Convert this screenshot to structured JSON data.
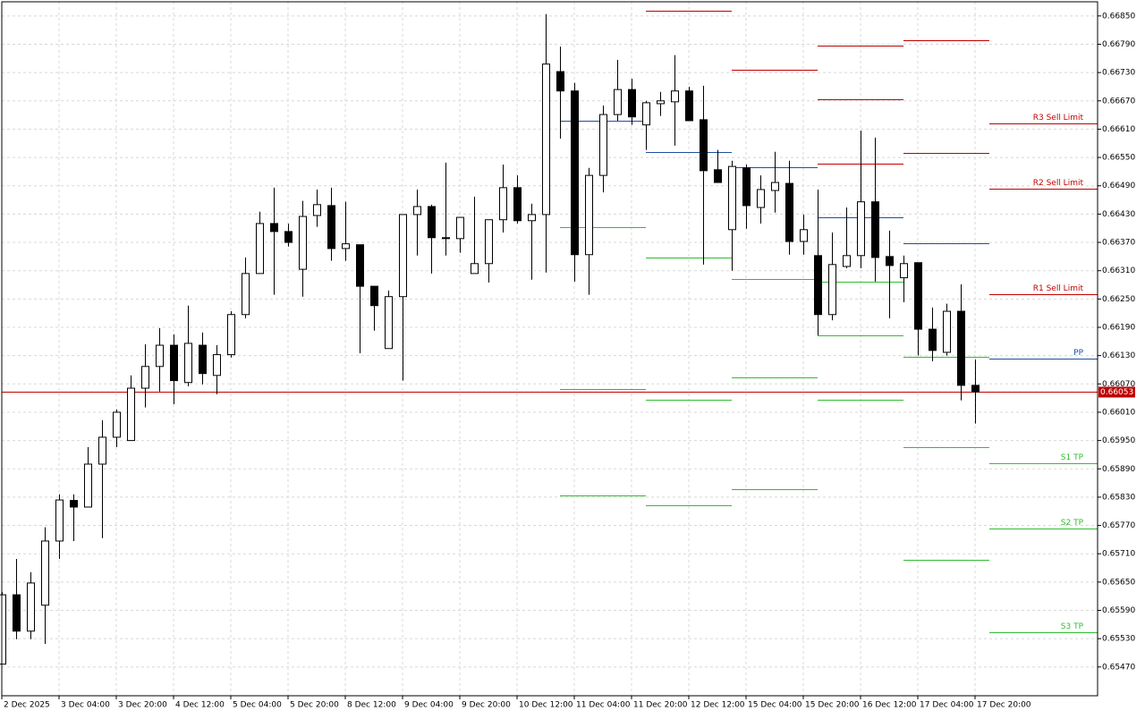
{
  "chart_data": {
    "type": "candlestick",
    "categories": [
      "2 Dec 2025",
      null,
      null,
      null,
      "3 Dec 04:00",
      null,
      null,
      null,
      "3 Dec 20:00",
      null,
      null,
      null,
      "4 Dec 12:00",
      null,
      null,
      null,
      "5 Dec 04:00",
      null,
      null,
      null,
      "5 Dec 20:00",
      null,
      null,
      null,
      "8 Dec 12:00",
      null,
      null,
      null,
      "9 Dec 04:00",
      null,
      null,
      null,
      "9 Dec 20:00",
      null,
      null,
      null,
      "10 Dec 12:00",
      null,
      null,
      null,
      "11 Dec 04:00",
      null,
      null,
      null,
      "11 Dec 20:00",
      null,
      null,
      null,
      "12 Dec 12:00",
      null,
      null,
      null,
      "15 Dec 04:00",
      null,
      null,
      null,
      "15 Dec 20:00",
      null,
      null,
      null,
      "16 Dec 12:00",
      null,
      null,
      null,
      "17 Dec 04:00",
      null,
      null,
      null,
      "17 Dec 20:00"
    ],
    "open": [
      0.65476,
      0.65623,
      0.65546,
      0.65601,
      0.65737,
      0.65823,
      0.65809,
      0.659,
      0.65957,
      0.6595,
      0.66061,
      0.66107,
      0.66152,
      0.66073,
      0.66152,
      0.66088,
      0.66132,
      0.66217,
      0.66304,
      0.6641,
      0.66393,
      0.66313,
      0.66427,
      0.66448,
      0.66357,
      0.66365,
      0.66277,
      0.66145,
      0.66255,
      0.66429,
      0.66446,
      0.6638,
      0.66378,
      0.66304,
      0.66325,
      0.66418,
      0.66486,
      0.66416,
      0.66429,
      0.66732,
      0.66691,
      0.66344,
      0.66512,
      0.66641,
      0.66694,
      0.66619,
      0.66664,
      0.66668,
      0.66691,
      0.6663,
      0.66524,
      0.66397,
      0.66528,
      0.66444,
      0.6648,
      0.66495,
      0.66372,
      0.66342,
      0.66217,
      0.66319,
      0.66342,
      0.66456,
      0.6634,
      0.66295,
      0.66327,
      0.66186,
      0.66137,
      0.66224,
      0.66067
    ],
    "high": [
      0.65629,
      0.65699,
      0.65671,
      0.65766,
      0.65836,
      0.65836,
      0.65936,
      0.65993,
      0.66016,
      0.66088,
      0.66154,
      0.66188,
      0.66175,
      0.66236,
      0.66179,
      0.66152,
      0.66224,
      0.66338,
      0.66435,
      0.66486,
      0.6641,
      0.66458,
      0.66482,
      0.66486,
      0.66456,
      0.66365,
      0.66277,
      0.66268,
      0.66429,
      0.66482,
      0.6645,
      0.66539,
      0.66423,
      0.66467,
      0.66418,
      0.66535,
      0.66512,
      0.66452,
      0.66854,
      0.66785,
      0.66708,
      0.66528,
      0.6666,
      0.66757,
      0.66717,
      0.6667,
      0.66689,
      0.66767,
      0.667,
      0.66702,
      0.66566,
      0.66543,
      0.66535,
      0.66512,
      0.66562,
      0.66543,
      0.66429,
      0.66482,
      0.66391,
      0.66444,
      0.66607,
      0.66592,
      0.66395,
      0.66342,
      0.66327,
      0.66232,
      0.6624,
      0.66281,
      0.66122
    ],
    "low": [
      0.65476,
      0.65529,
      0.65529,
      0.65519,
      0.65699,
      0.65737,
      0.65809,
      0.65743,
      0.65936,
      0.6595,
      0.6602,
      0.66054,
      0.66027,
      0.66065,
      0.66069,
      0.66048,
      0.66126,
      0.66209,
      0.66304,
      0.66259,
      0.66361,
      0.66255,
      0.66403,
      0.66331,
      0.66331,
      0.66135,
      0.66183,
      0.66145,
      0.66077,
      0.66342,
      0.66304,
      0.66342,
      0.66348,
      0.66304,
      0.66285,
      0.66391,
      0.6641,
      0.66291,
      0.66306,
      0.6659,
      0.66287,
      0.66259,
      0.66476,
      0.66628,
      0.66619,
      0.66566,
      0.66638,
      0.66575,
      0.66628,
      0.66323,
      0.66497,
      0.6631,
      0.66399,
      0.6641,
      0.66433,
      0.66344,
      0.66344,
      0.66173,
      0.66205,
      0.66315,
      0.66315,
      0.66287,
      0.66209,
      0.66243,
      0.6613,
      0.66118,
      0.6613,
      0.66035,
      0.65986
    ],
    "close": [
      0.65623,
      0.65546,
      0.65648,
      0.65737,
      0.65824,
      0.65809,
      0.659,
      0.65957,
      0.6601,
      0.66061,
      0.66107,
      0.66152,
      0.66077,
      0.66156,
      0.66092,
      0.66132,
      0.66217,
      0.66304,
      0.6641,
      0.66393,
      0.6637,
      0.66425,
      0.6645,
      0.66357,
      0.66367,
      0.66277,
      0.66236,
      0.66255,
      0.66429,
      0.66446,
      0.6638,
      0.66378,
      0.66423,
      0.66325,
      0.66418,
      0.66486,
      0.66416,
      0.66429,
      0.66748,
      0.66691,
      0.66344,
      0.66512,
      0.66641,
      0.66694,
      0.66636,
      0.66666,
      0.6667,
      0.66691,
      0.66628,
      0.66522,
      0.66497,
      0.66531,
      0.66448,
      0.66482,
      0.66497,
      0.66372,
      0.66397,
      0.66217,
      0.66323,
      0.66342,
      0.66456,
      0.66338,
      0.66321,
      0.66325,
      0.66186,
      0.66141,
      0.66224,
      0.66067,
      0.66053
    ],
    "up_color": "#ffffff",
    "down_color": "#000000",
    "ylim": [
      0.65409,
      0.6688
    ],
    "yticks": [
      {
        "value": 0.6685,
        "label": "0.66850"
      },
      {
        "value": 0.6679,
        "label": "0.66790"
      },
      {
        "value": 0.6673,
        "label": "0.66730"
      },
      {
        "value": 0.6667,
        "label": "0.66670"
      },
      {
        "value": 0.6661,
        "label": "0.66610"
      },
      {
        "value": 0.6655,
        "label": "0.66550"
      },
      {
        "value": 0.6649,
        "label": "0.66490"
      },
      {
        "value": 0.6643,
        "label": "0.66430"
      },
      {
        "value": 0.6637,
        "label": "0.66370"
      },
      {
        "value": 0.6631,
        "label": "0.66310"
      },
      {
        "value": 0.6625,
        "label": "0.66250"
      },
      {
        "value": 0.6619,
        "label": "0.66190"
      },
      {
        "value": 0.6613,
        "label": "0.66130"
      },
      {
        "value": 0.6607,
        "label": "0.66070"
      },
      {
        "value": 0.6601,
        "label": "0.66010"
      },
      {
        "value": 0.6595,
        "label": "0.65950"
      },
      {
        "value": 0.6589,
        "label": "0.65890"
      },
      {
        "value": 0.6583,
        "label": "0.65830"
      },
      {
        "value": 0.6577,
        "label": "0.65770"
      },
      {
        "value": 0.6571,
        "label": "0.65710"
      },
      {
        "value": 0.6565,
        "label": "0.65650"
      },
      {
        "value": 0.6559,
        "label": "0.65590"
      },
      {
        "value": 0.6553,
        "label": "0.65530"
      },
      {
        "value": 0.6547,
        "label": "0.65470"
      }
    ],
    "grid": true,
    "current_price": 0.66053,
    "current_price_color": "#c00000",
    "pivots": [
      {
        "start": 39,
        "end": 45,
        "lines": [
          {
            "value": 0.66628,
            "color": "#1f4ea0"
          },
          {
            "value": 0.66403,
            "color": "#33bb33"
          },
          {
            "value": 0.66059,
            "color": "#33bb33"
          },
          {
            "value": 0.65834,
            "color": "#33bb33"
          }
        ]
      },
      {
        "start": 45,
        "end": 51,
        "lines": [
          {
            "value": 0.66861,
            "color": "#c00000"
          },
          {
            "value": 0.66562,
            "color": "#1f4ea0"
          },
          {
            "value": 0.66338,
            "color": "#33bb33"
          },
          {
            "value": 0.66037,
            "color": "#33bb33"
          },
          {
            "value": 0.65813,
            "color": "#33bb33"
          }
        ]
      },
      {
        "start": 51,
        "end": 57,
        "lines": [
          {
            "value": 0.66736,
            "color": "#c00000"
          },
          {
            "value": 0.6653,
            "color": "#1f4ea0"
          },
          {
            "value": 0.66293,
            "color": "#33bb33"
          },
          {
            "value": 0.66084,
            "color": "#33bb33"
          },
          {
            "value": 0.65847,
            "color": "#33bb33"
          }
        ]
      },
      {
        "start": 57,
        "end": 63,
        "lines": [
          {
            "value": 0.66787,
            "color": "#c00000"
          },
          {
            "value": 0.66674,
            "color": "#c00000"
          },
          {
            "value": 0.66537,
            "color": "#c00000"
          },
          {
            "value": 0.66423,
            "color": "#1f4ea0"
          },
          {
            "value": 0.66287,
            "color": "#33bb33"
          },
          {
            "value": 0.66173,
            "color": "#33bb33"
          },
          {
            "value": 0.66037,
            "color": "#33bb33"
          }
        ]
      },
      {
        "start": 63,
        "end": 69,
        "lines": [
          {
            "value": 0.66799,
            "color": "#c00000"
          },
          {
            "value": 0.6656,
            "color": "#c00000"
          },
          {
            "value": 0.66368,
            "color": "#1f4ea0"
          },
          {
            "value": 0.66128,
            "color": "#33bb33"
          },
          {
            "value": 0.65936,
            "color": "#33bb33"
          },
          {
            "value": 0.65697,
            "color": "#33bb33"
          }
        ]
      },
      {
        "start": 69,
        "lines": [
          {
            "value": 0.66622,
            "color": "#c00000",
            "label": "R3 Sell Limit"
          },
          {
            "value": 0.66484,
            "color": "#c00000",
            "label": "R2 Sell Limit"
          },
          {
            "value": 0.6626,
            "color": "#c00000",
            "label": "R1 Sell Limit"
          },
          {
            "value": 0.66124,
            "color": "#1f4ea0",
            "label": "PP"
          },
          {
            "value": 0.65902,
            "color": "#33bb33",
            "label": "S1 TP"
          },
          {
            "value": 0.65764,
            "color": "#33bb33",
            "label": "S2 TP"
          },
          {
            "value": 0.65544,
            "color": "#33bb33",
            "label": "S3 TP"
          }
        ]
      }
    ]
  }
}
